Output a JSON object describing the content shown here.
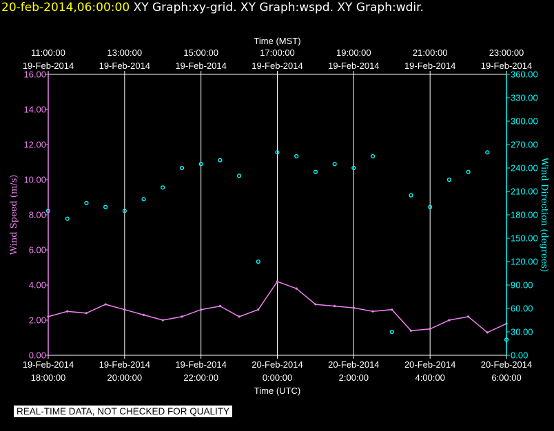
{
  "header": {
    "timestamp": "20-feb-2014,06:00:00",
    "graphs": "XY Graph:xy-grid.  XY Graph:wspd.  XY Graph:wdir."
  },
  "footer": {
    "note": "REAL-TIME DATA, NOT CHECKED FOR QUALITY"
  },
  "chart_data": {
    "type": "scatter",
    "background": "#000000",
    "grid": true,
    "x_top_title": "Time (MST)",
    "x_top_ticks": [
      {
        "time": "11:00:00",
        "date": "19-Feb-2014"
      },
      {
        "time": "13:00:00",
        "date": "19-Feb-2014"
      },
      {
        "time": "15:00:00",
        "date": "19-Feb-2014"
      },
      {
        "time": "17:00:00",
        "date": "19-Feb-2014"
      },
      {
        "time": "19:00:00",
        "date": "19-Feb-2014"
      },
      {
        "time": "21:00:00",
        "date": "19-Feb-2014"
      },
      {
        "time": "23:00:00",
        "date": "19-Feb-2014"
      }
    ],
    "x_bottom_title": "Time (UTC)",
    "x_bottom_ticks": [
      {
        "date": "19-Feb-2014",
        "time": "18:00:00"
      },
      {
        "date": "19-Feb-2014",
        "time": "20:00:00"
      },
      {
        "date": "19-Feb-2014",
        "time": "22:00:00"
      },
      {
        "date": "20-Feb-2014",
        "time": "0:00:00"
      },
      {
        "date": "20-Feb-2014",
        "time": "2:00:00"
      },
      {
        "date": "20-Feb-2014",
        "time": "4:00:00"
      },
      {
        "date": "20-Feb-2014",
        "time": "6:00:00"
      }
    ],
    "xlim_utc": [
      "2014-02-19 18:00",
      "2014-02-20 06:00"
    ],
    "y_left": {
      "label": "Wind Speed (m/s)",
      "color": "#ee82ee",
      "ylim": [
        0,
        16
      ],
      "ticks": [
        "0.00",
        "2.00",
        "4.00",
        "6.00",
        "8.00",
        "10.00",
        "12.00",
        "14.00",
        "16.00"
      ]
    },
    "y_right": {
      "label": "Wind Direction (degrees)",
      "color": "#00ffff",
      "ylim": [
        0,
        360
      ],
      "ticks": [
        "0.00",
        "30.00",
        "60.00",
        "90.00",
        "120.00",
        "150.00",
        "180.00",
        "210.00",
        "240.00",
        "270.00",
        "300.00",
        "330.00",
        "360.00"
      ]
    },
    "series": [
      {
        "color": "#ee82ee",
        "axis": "left",
        "style": "line",
        "x": [
          "2014-02-19 18:00",
          "2014-02-19 18:30",
          "2014-02-19 19:00",
          "2014-02-19 19:30",
          "2014-02-19 20:00",
          "2014-02-19 20:30",
          "2014-02-19 21:00",
          "2014-02-19 21:30",
          "2014-02-19 22:00",
          "2014-02-19 22:30",
          "2014-02-19 23:00",
          "2014-02-19 23:30",
          "2014-02-20 00:00",
          "2014-02-20 00:30",
          "2014-02-20 01:00",
          "2014-02-20 01:30",
          "2014-02-20 02:00",
          "2014-02-20 02:30",
          "2014-02-20 03:00",
          "2014-02-20 03:30",
          "2014-02-20 04:00",
          "2014-02-20 04:30",
          "2014-02-20 05:00",
          "2014-02-20 05:30",
          "2014-02-20 06:00"
        ],
        "y": [
          2.2,
          2.5,
          2.4,
          2.9,
          2.6,
          2.3,
          2.0,
          2.2,
          2.6,
          2.8,
          2.2,
          2.6,
          4.2,
          3.8,
          2.9,
          2.8,
          2.7,
          2.5,
          2.6,
          1.4,
          1.5,
          2.0,
          2.2,
          1.3,
          1.8
        ]
      },
      {
        "color": "#00ffff",
        "axis": "right",
        "style": "markers",
        "x": [
          "2014-02-19 18:00",
          "2014-02-19 18:30",
          "2014-02-19 19:00",
          "2014-02-19 19:30",
          "2014-02-19 20:00",
          "2014-02-19 20:30",
          "2014-02-19 21:00",
          "2014-02-19 21:30",
          "2014-02-19 22:00",
          "2014-02-19 22:30",
          "2014-02-19 23:00",
          "2014-02-19 23:30",
          "2014-02-20 00:00",
          "2014-02-20 00:30",
          "2014-02-20 01:00",
          "2014-02-20 01:30",
          "2014-02-20 02:00",
          "2014-02-20 02:30",
          "2014-02-20 03:00",
          "2014-02-20 03:30",
          "2014-02-20 04:00",
          "2014-02-20 04:30",
          "2014-02-20 05:00",
          "2014-02-20 05:30",
          "2014-02-20 06:00"
        ],
        "y": [
          185,
          175,
          195,
          190,
          185,
          200,
          215,
          240,
          245,
          250,
          230,
          120,
          260,
          255,
          235,
          245,
          240,
          255,
          30,
          205,
          190,
          225,
          235,
          260,
          20
        ]
      }
    ]
  }
}
